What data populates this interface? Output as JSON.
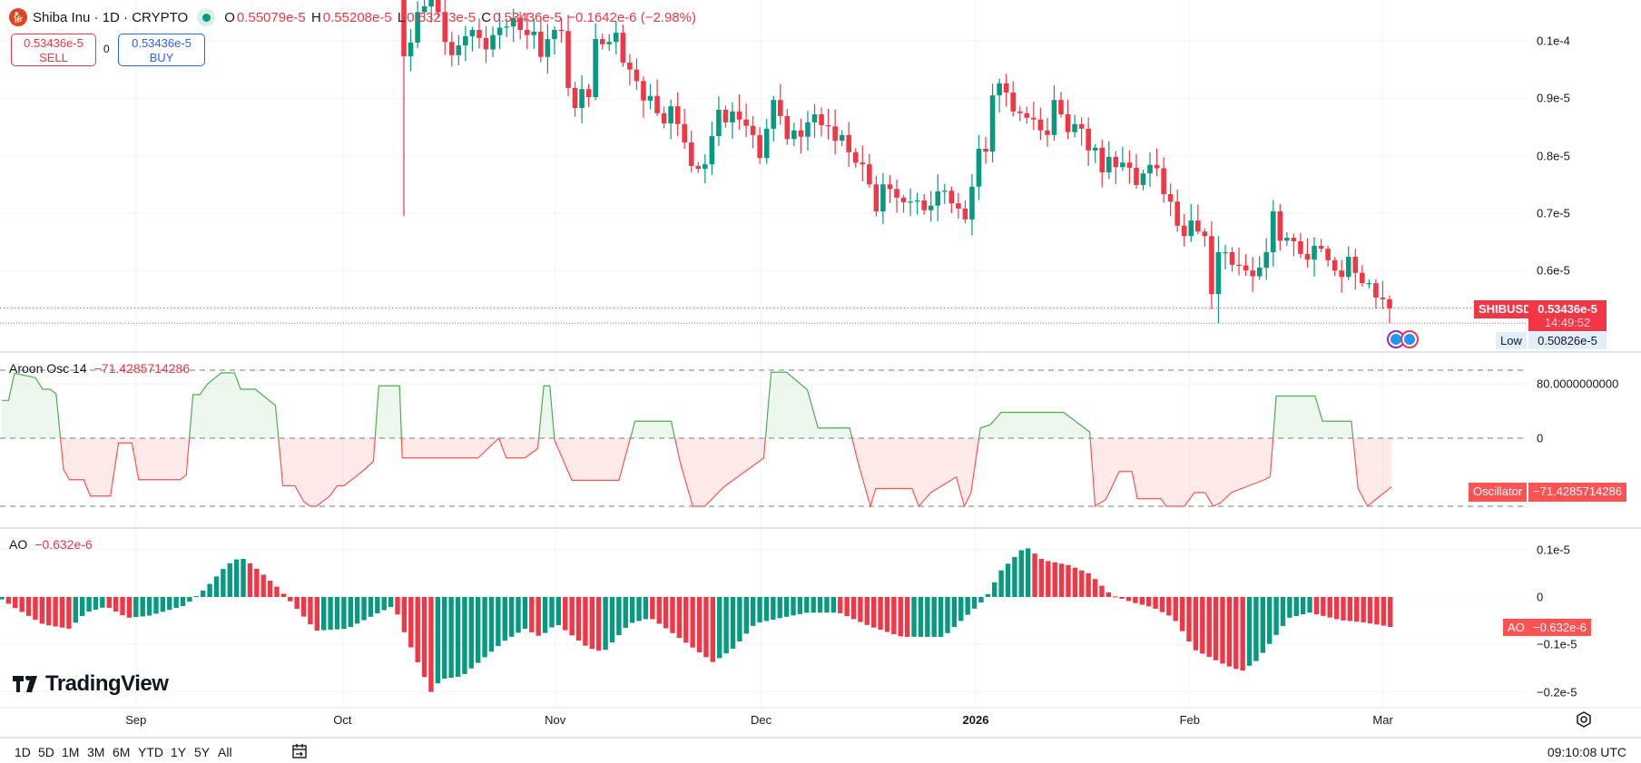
{
  "header": {
    "symbol_title": "Shiba Inu · 1D · CRYPTO",
    "o_label": "O",
    "o_value": "0.55079e-5",
    "h_label": "H",
    "h_value": "0.55208e-5",
    "l_label": "L",
    "l_value": "0.53273e-5",
    "c_label": "C",
    "c_value": "0.53436e-5",
    "change": "−0.1642e-6 (−2.98%)"
  },
  "trade": {
    "sell_price": "0.53436e-5",
    "sell_label": "SELL",
    "spread": "0",
    "buy_price": "0.53436e-5",
    "buy_label": "BUY"
  },
  "price_axis": {
    "ticks": [
      {
        "v": 10,
        "label": "0.1e-4"
      },
      {
        "v": 9,
        "label": "0.9e-5"
      },
      {
        "v": 8,
        "label": "0.8e-5"
      },
      {
        "v": 7,
        "label": "0.7e-5"
      },
      {
        "v": 6,
        "label": "0.6e-5"
      }
    ],
    "symbol_tag": "SHIBUSD",
    "last_price": "0.53436e-5",
    "countdown": "14:49:52",
    "low_label": "Low",
    "low_value": "0.50826e-5"
  },
  "aroon": {
    "title": "Aroon Osc 14",
    "value": "−71.4285714286",
    "tag_label": "Oscillator",
    "ticks": [
      {
        "v": 80,
        "label": "80.0000000000"
      },
      {
        "v": 0,
        "label": "0"
      }
    ]
  },
  "ao": {
    "title": "AO",
    "value": "−0.632e-6",
    "tag_label": "AO",
    "ticks": [
      {
        "v": 1,
        "label": "0.1e-5"
      },
      {
        "v": 0,
        "label": "0"
      },
      {
        "v": -1,
        "label": "−0.1e-5"
      },
      {
        "v": -2,
        "label": "−0.2e-5"
      }
    ]
  },
  "time_axis": {
    "labels": [
      {
        "d": 20.0,
        "label": "Sep"
      },
      {
        "d": 50.8,
        "label": "Oct"
      },
      {
        "d": 82.5,
        "label": "Nov"
      },
      {
        "d": 113.2,
        "label": "Dec"
      },
      {
        "d": 145.2,
        "label": "2026",
        "bold": true
      },
      {
        "d": 177.1,
        "label": "Feb"
      },
      {
        "d": 205.9,
        "label": "Mar"
      }
    ]
  },
  "bottom_bar": {
    "ranges": [
      "1D",
      "5D",
      "1M",
      "3M",
      "6M",
      "YTD",
      "1Y",
      "5Y",
      "All"
    ],
    "clock": "09:10:08 UTC"
  },
  "branding": {
    "name": "TradingView"
  },
  "colors": {
    "up": "#089981",
    "down": "#F23645",
    "aroon_up": "#4CAF50",
    "aroon_down": "#FF5252",
    "ao_tag": "#F23645"
  },
  "chart_data": [
    {
      "type": "candlestick",
      "title": "Shiba Inu · 1D · CRYPTO",
      "unit": "1e-6 USD",
      "first_open": 11.0,
      "close": [
        9.73,
        9.97,
        10.5,
        10.6,
        10.8,
        10.5,
        9.98,
        9.75,
        9.92,
        10.08,
        10.19,
        10.05,
        9.85,
        10.1,
        10.23,
        10.25,
        10.4,
        10.19,
        10.1,
        10.16,
        9.72,
        10.03,
        10.19,
        10.17,
        9.18,
        8.83,
        9.16,
        9.02,
        10.03,
        9.94,
        9.98,
        10.14,
        9.62,
        9.5,
        9.3,
        8.96,
        9.04,
        8.74,
        8.56,
        8.86,
        8.55,
        8.23,
        7.82,
        7.77,
        7.85,
        8.34,
        8.8,
        8.58,
        8.77,
        8.63,
        8.52,
        8.36,
        7.96,
        8.47,
        8.97,
        8.69,
        8.29,
        8.44,
        8.33,
        8.58,
        8.72,
        8.53,
        8.51,
        8.26,
        8.36,
        8.06,
        7.88,
        7.85,
        7.5,
        7.03,
        7.5,
        7.42,
        7.27,
        7.19,
        7.2,
        7.22,
        7.05,
        7.13,
        7.38,
        7.39,
        7.17,
        7.08,
        6.89,
        7.46,
        8.12,
        8.07,
        9.05,
        9.26,
        9.1,
        8.77,
        8.74,
        8.66,
        8.63,
        8.44,
        8.36,
        8.97,
        8.72,
        8.41,
        8.55,
        8.47,
        8.09,
        8.14,
        7.71,
        7.98,
        7.8,
        7.88,
        7.79,
        7.49,
        7.69,
        7.84,
        7.78,
        7.33,
        7.2,
        6.78,
        6.6,
        6.87,
        6.68,
        6.6,
        5.59,
        6.32,
        6.32,
        6.1,
        6.09,
        6.0,
        5.9,
        6.05,
        6.32,
        7.03,
        6.52,
        6.57,
        6.51,
        6.29,
        6.19,
        6.43,
        6.38,
        6.18,
        6.0,
        5.89,
        6.24,
        5.96,
        5.78,
        5.78,
        5.53,
        5.5,
        5.3436
      ],
      "low_overrides": {
        "0": 6.95,
        "119": 5.0826
      },
      "ylim": [
        5.0,
        10.7
      ],
      "last_price": 5.3436,
      "low": 5.0826
    },
    {
      "type": "line",
      "title": "Aroon Osc 14",
      "ylim": [
        -100,
        100
      ],
      "points": [
        [
          0,
          55.6
        ],
        [
          1.0,
          55.6
        ],
        [
          1.9,
          95.6
        ],
        [
          5.0,
          89
        ],
        [
          6.1,
          72
        ],
        [
          7.2,
          72
        ],
        [
          8.1,
          65
        ],
        [
          9.2,
          -46
        ],
        [
          10.1,
          -61
        ],
        [
          12.2,
          -61
        ],
        [
          13.2,
          -85
        ],
        [
          16.2,
          -85
        ],
        [
          17.4,
          -7
        ],
        [
          19.4,
          -7
        ],
        [
          20.4,
          -61
        ],
        [
          26.6,
          -61
        ],
        [
          27.5,
          -54
        ],
        [
          28.5,
          64
        ],
        [
          29.5,
          64
        ],
        [
          30.7,
          80
        ],
        [
          32.7,
          96
        ],
        [
          34.7,
          96
        ],
        [
          35.6,
          72
        ],
        [
          37.8,
          72
        ],
        [
          40.8,
          48
        ],
        [
          41.9,
          -70
        ],
        [
          43.7,
          -70
        ],
        [
          45.0,
          -93
        ],
        [
          46.0,
          -100
        ],
        [
          46.9,
          -100
        ],
        [
          48.9,
          -85
        ],
        [
          50.0,
          -70
        ],
        [
          51.0,
          -70
        ],
        [
          54.1,
          -46
        ],
        [
          55.4,
          -34
        ],
        [
          56.2,
          77
        ],
        [
          59.3,
          77
        ],
        [
          59.7,
          -29
        ],
        [
          71.0,
          -29
        ],
        [
          74.1,
          0
        ],
        [
          75.2,
          -29
        ],
        [
          78.0,
          -29
        ],
        [
          79.9,
          -15
        ],
        [
          80.8,
          77
        ],
        [
          81.7,
          77
        ],
        [
          82.4,
          -3
        ],
        [
          85.0,
          -62
        ],
        [
          92.0,
          -62
        ],
        [
          94.4,
          25
        ],
        [
          99.8,
          25
        ],
        [
          101.1,
          -34
        ],
        [
          103.0,
          -100
        ],
        [
          104.8,
          -100
        ],
        [
          107.6,
          -72
        ],
        [
          113.6,
          -29
        ],
        [
          114.7,
          97
        ],
        [
          117,
          97
        ],
        [
          120.1,
          71
        ],
        [
          121.7,
          15
        ],
        [
          126.4,
          15
        ],
        [
          127.6,
          -34
        ],
        [
          129.5,
          -100
        ],
        [
          130.3,
          -74
        ],
        [
          135.7,
          -74
        ],
        [
          136.7,
          -100
        ],
        [
          138.5,
          -80
        ],
        [
          142.3,
          -57
        ],
        [
          143.5,
          -100
        ],
        [
          144.5,
          -80
        ],
        [
          145.9,
          15
        ],
        [
          147.4,
          20
        ],
        [
          149.0,
          38
        ],
        [
          158.3,
          38
        ],
        [
          162.2,
          9
        ],
        [
          163.0,
          -100
        ],
        [
          164.6,
          -90
        ],
        [
          166.6,
          -49
        ],
        [
          168.5,
          -49
        ],
        [
          169.3,
          -89
        ],
        [
          172.8,
          -89
        ],
        [
          173.6,
          -100
        ],
        [
          176.3,
          -100
        ],
        [
          177.8,
          -80
        ],
        [
          179.4,
          -80
        ],
        [
          180.6,
          -100
        ],
        [
          181.7,
          -95
        ],
        [
          183.3,
          -80
        ],
        [
          188.0,
          -62
        ],
        [
          189.1,
          -57
        ],
        [
          190.0,
          62
        ],
        [
          195.8,
          62
        ],
        [
          196.9,
          25
        ],
        [
          201.2,
          25
        ],
        [
          202.2,
          -74
        ],
        [
          203.6,
          -100
        ],
        [
          207.2,
          -71.43
        ]
      ]
    },
    {
      "type": "bar",
      "title": "AO",
      "unit": "1e-6",
      "ylim": [
        -2.2,
        1.3
      ],
      "bars": 208,
      "keypoints": [
        [
          0,
          -0.05
        ],
        [
          1.6,
          -0.2
        ],
        [
          6.2,
          -0.58
        ],
        [
          10.1,
          -0.67
        ],
        [
          12.5,
          -0.33
        ],
        [
          15.6,
          -0.2
        ],
        [
          18.7,
          -0.44
        ],
        [
          21.8,
          -0.4
        ],
        [
          27.3,
          -0.18
        ],
        [
          30.4,
          0.18
        ],
        [
          33.5,
          0.67
        ],
        [
          35.6,
          0.84
        ],
        [
          37.4,
          0.67
        ],
        [
          41.3,
          0.18
        ],
        [
          44.5,
          -0.33
        ],
        [
          46.8,
          -0.71
        ],
        [
          51.5,
          -0.67
        ],
        [
          56.2,
          -0.33
        ],
        [
          58.5,
          -0.18
        ],
        [
          60.1,
          -0.78
        ],
        [
          64,
          -2.0
        ],
        [
          65.5,
          -1.73
        ],
        [
          68.6,
          -1.67
        ],
        [
          74.9,
          -0.93
        ],
        [
          78,
          -0.67
        ],
        [
          80.3,
          -0.84
        ],
        [
          82.7,
          -0.56
        ],
        [
          87.4,
          -1.07
        ],
        [
          89.7,
          -1.16
        ],
        [
          93.6,
          -0.56
        ],
        [
          96.7,
          -0.44
        ],
        [
          99.1,
          -0.67
        ],
        [
          106.1,
          -1.38
        ],
        [
          109.2,
          -1.07
        ],
        [
          112.3,
          -0.56
        ],
        [
          116.2,
          -0.44
        ],
        [
          120.1,
          -0.33
        ],
        [
          124.8,
          -0.33
        ],
        [
          129.5,
          -0.62
        ],
        [
          134.2,
          -0.84
        ],
        [
          140.4,
          -0.84
        ],
        [
          146.6,
          -0.04
        ],
        [
          149,
          0.56
        ],
        [
          152.6,
          1.07
        ],
        [
          155.2,
          0.78
        ],
        [
          159.1,
          0.67
        ],
        [
          162.2,
          0.49
        ],
        [
          165.4,
          0.04
        ],
        [
          168.5,
          -0.11
        ],
        [
          171.6,
          -0.22
        ],
        [
          174.7,
          -0.44
        ],
        [
          177.8,
          -1.11
        ],
        [
          182.5,
          -1.44
        ],
        [
          184.9,
          -1.56
        ],
        [
          187.2,
          -1.33
        ],
        [
          191.9,
          -0.44
        ],
        [
          195,
          -0.33
        ],
        [
          199.7,
          -0.49
        ],
        [
          202.8,
          -0.53
        ],
        [
          207.2,
          -0.632
        ]
      ]
    }
  ]
}
